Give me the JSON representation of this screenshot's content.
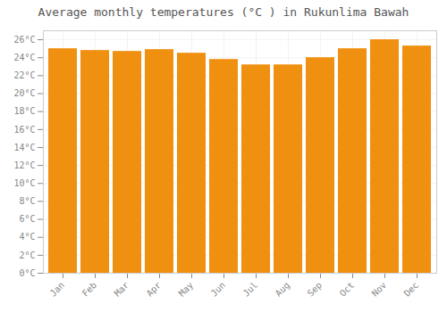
{
  "chart_data": {
    "type": "bar",
    "title": "Average monthly temperatures (°C ) in Rukunlima Bawah",
    "categories": [
      "Jan",
      "Feb",
      "Mar",
      "Apr",
      "May",
      "Jun",
      "Jul",
      "Aug",
      "Sep",
      "Oct",
      "Nov",
      "Dec"
    ],
    "values": [
      25.0,
      24.8,
      24.7,
      24.9,
      24.5,
      23.8,
      23.2,
      23.2,
      24.0,
      25.0,
      26.0,
      25.3
    ],
    "color": "#F09010",
    "ylim": [
      0,
      27
    ],
    "yticks": [
      {
        "value": 0,
        "label": "0°C"
      },
      {
        "value": 2,
        "label": "2°C"
      },
      {
        "value": 4,
        "label": "4°C"
      },
      {
        "value": 6,
        "label": "6°C"
      },
      {
        "value": 8,
        "label": "8°C"
      },
      {
        "value": 10,
        "label": "10°C"
      },
      {
        "value": 12,
        "label": "12°C"
      },
      {
        "value": 14,
        "label": "14°C"
      },
      {
        "value": 16,
        "label": "16°C"
      },
      {
        "value": 18,
        "label": "18°C"
      },
      {
        "value": 20,
        "label": "20°C"
      },
      {
        "value": 22,
        "label": "22°C"
      },
      {
        "value": 24,
        "label": "24°C"
      },
      {
        "value": 26,
        "label": "26°C"
      }
    ],
    "grid": true
  }
}
